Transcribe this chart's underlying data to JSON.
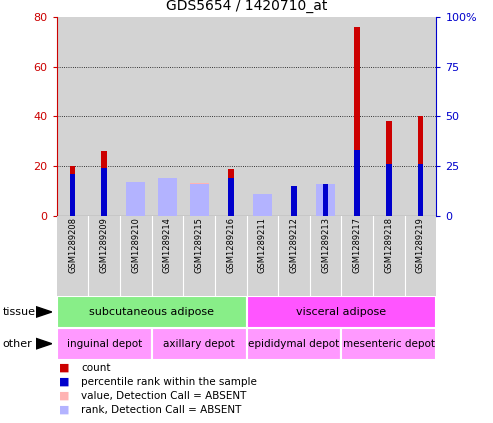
{
  "title": "GDS5654 / 1420710_at",
  "samples": [
    "GSM1289208",
    "GSM1289209",
    "GSM1289210",
    "GSM1289214",
    "GSM1289215",
    "GSM1289216",
    "GSM1289211",
    "GSM1289212",
    "GSM1289213",
    "GSM1289217",
    "GSM1289218",
    "GSM1289219"
  ],
  "count_values": [
    20,
    26,
    0,
    0,
    0,
    19,
    0,
    10,
    12,
    76,
    38,
    40
  ],
  "percentile_values": [
    21,
    24,
    0,
    0,
    0,
    19,
    0,
    15,
    16,
    33,
    26,
    26
  ],
  "absent_value_values": [
    0,
    0,
    12,
    15,
    13,
    0,
    7,
    0,
    0,
    0,
    0,
    0
  ],
  "absent_rank_values": [
    0,
    0,
    17,
    19,
    16,
    0,
    11,
    0,
    16,
    0,
    0,
    0
  ],
  "left_ylim": [
    0,
    80
  ],
  "right_ylim": [
    0,
    100
  ],
  "left_yticks": [
    0,
    20,
    40,
    60,
    80
  ],
  "right_yticks": [
    0,
    25,
    50,
    75,
    100
  ],
  "right_yticklabels": [
    "0",
    "25",
    "50",
    "75",
    "100%"
  ],
  "tissue_groups": [
    {
      "label": "subcutaneous adipose",
      "start": 0,
      "end": 6,
      "color": "#88ee88"
    },
    {
      "label": "visceral adipose",
      "start": 6,
      "end": 12,
      "color": "#ff55ff"
    }
  ],
  "other_groups": [
    {
      "label": "inguinal depot",
      "start": 0,
      "end": 3,
      "color": "#ff99ff"
    },
    {
      "label": "axillary depot",
      "start": 3,
      "end": 6,
      "color": "#ff99ff"
    },
    {
      "label": "epididymal depot",
      "start": 6,
      "end": 9,
      "color": "#ff99ff"
    },
    {
      "label": "mesenteric depot",
      "start": 9,
      "end": 12,
      "color": "#ff99ff"
    }
  ],
  "count_color": "#cc0000",
  "percentile_color": "#0000cc",
  "absent_value_color": "#ffb3b3",
  "absent_rank_color": "#b3b3ff",
  "bg_color": "#d3d3d3",
  "plot_bg": "#ffffff",
  "left_label_color": "#cc0000",
  "right_label_color": "#0000cc",
  "legend_items": [
    {
      "color": "#cc0000",
      "label": "count"
    },
    {
      "color": "#0000cc",
      "label": "percentile rank within the sample"
    },
    {
      "color": "#ffb3b3",
      "label": "value, Detection Call = ABSENT"
    },
    {
      "color": "#b3b3ff",
      "label": "rank, Detection Call = ABSENT"
    }
  ]
}
